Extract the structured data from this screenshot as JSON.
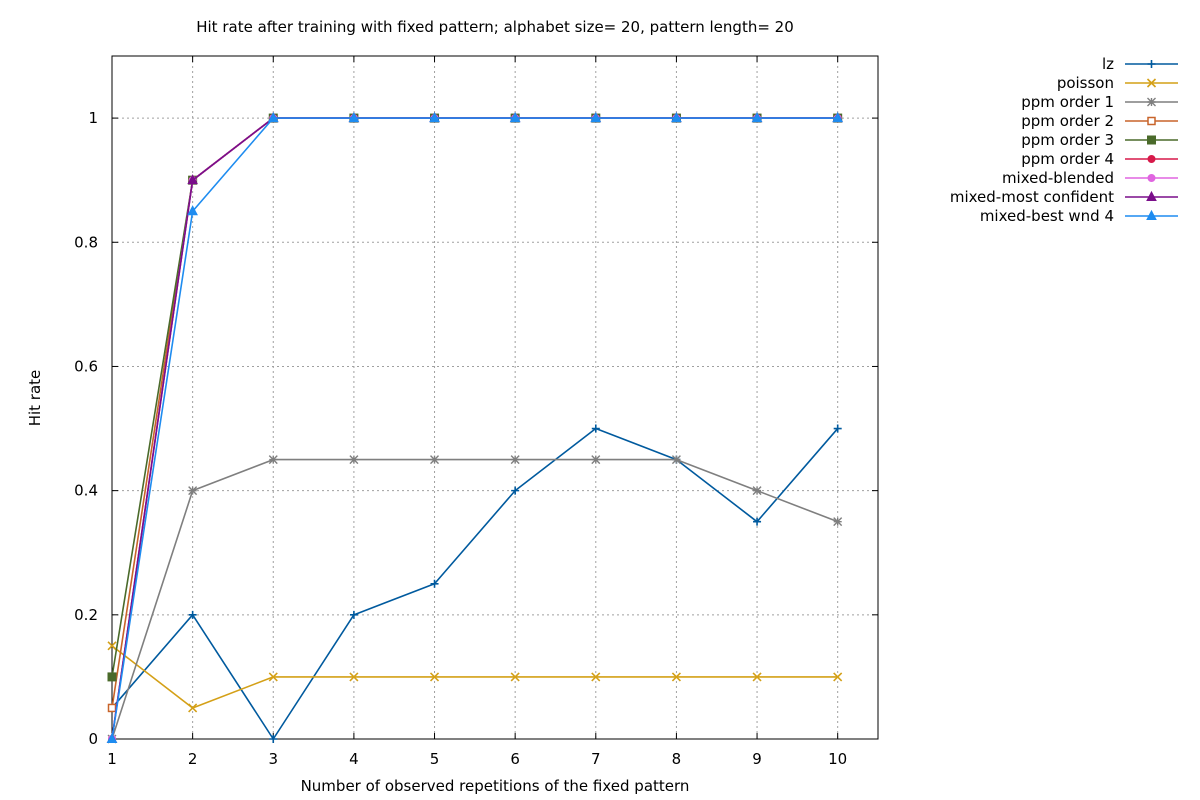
{
  "chart_data": {
    "type": "line",
    "title": "Hit rate after training with fixed pattern; alphabet size= 20, pattern length= 20",
    "xlabel": "Number of observed repetitions of the fixed pattern",
    "ylabel": "Hit rate",
    "xlim": [
      1,
      10.5
    ],
    "ylim": [
      0,
      1.1
    ],
    "x_ticks": [
      1,
      2,
      3,
      4,
      5,
      6,
      7,
      8,
      9,
      10
    ],
    "y_ticks": [
      0,
      0.2,
      0.4,
      0.6,
      0.8,
      1
    ],
    "y_tick_labels": [
      "0",
      "0.2",
      "0.4",
      "0.6",
      "0.8",
      "1"
    ],
    "grid": true,
    "legend_position": "outside-top-right",
    "x": [
      1,
      2,
      3,
      4,
      5,
      6,
      7,
      8,
      9,
      10
    ],
    "series": [
      {
        "name": "lz",
        "color": "#005a9e",
        "marker": "plus",
        "values": [
          0.05,
          0.2,
          0.0,
          0.2,
          0.25,
          0.4,
          0.5,
          0.45,
          0.35,
          0.5
        ]
      },
      {
        "name": "poisson",
        "color": "#d4a017",
        "marker": "x",
        "values": [
          0.15,
          0.05,
          0.1,
          0.1,
          0.1,
          0.1,
          0.1,
          0.1,
          0.1,
          0.1
        ]
      },
      {
        "name": "ppm order 1",
        "color": "#7f7f7f",
        "marker": "star",
        "values": [
          0.0,
          0.4,
          0.45,
          0.45,
          0.45,
          0.45,
          0.45,
          0.45,
          0.4,
          0.35
        ]
      },
      {
        "name": "ppm order 2",
        "color": "#c8642a",
        "marker": "open-square",
        "values": [
          0.05,
          0.9,
          1.0,
          1.0,
          1.0,
          1.0,
          1.0,
          1.0,
          1.0,
          1.0
        ]
      },
      {
        "name": "ppm order 3",
        "color": "#4a6a2a",
        "marker": "filled-square",
        "values": [
          0.1,
          0.9,
          1.0,
          1.0,
          1.0,
          1.0,
          1.0,
          1.0,
          1.0,
          1.0
        ]
      },
      {
        "name": "ppm order 4",
        "color": "#d7194a",
        "marker": "circle",
        "values": [
          0.0,
          0.9,
          1.0,
          1.0,
          1.0,
          1.0,
          1.0,
          1.0,
          1.0,
          1.0
        ]
      },
      {
        "name": "mixed-blended",
        "color": "#e065e0",
        "marker": "open-circle",
        "values": [
          0.0,
          0.9,
          1.0,
          1.0,
          1.0,
          1.0,
          1.0,
          1.0,
          1.0,
          1.0
        ]
      },
      {
        "name": "mixed-most confident",
        "color": "#7a0e8a",
        "marker": "triangle",
        "values": [
          0.0,
          0.9,
          1.0,
          1.0,
          1.0,
          1.0,
          1.0,
          1.0,
          1.0,
          1.0
        ]
      },
      {
        "name": "mixed-best wnd 4",
        "color": "#1e8cf0",
        "marker": "filled-triangle",
        "values": [
          0.0,
          0.85,
          1.0,
          1.0,
          1.0,
          1.0,
          1.0,
          1.0,
          1.0,
          1.0
        ]
      }
    ]
  }
}
